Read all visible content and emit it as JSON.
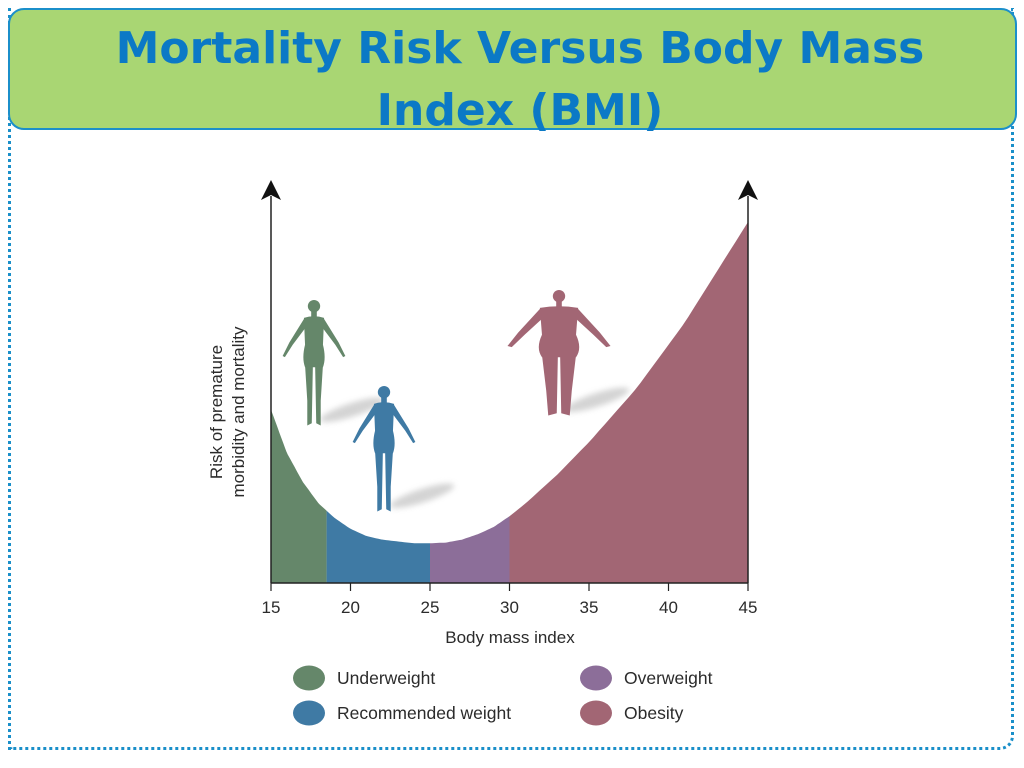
{
  "slide": {
    "title": "Mortality Risk Versus Body Mass Index (BMI)"
  },
  "chart_data": {
    "type": "area",
    "xlabel": "Body mass index",
    "ylabel_line1": "Risk of premature",
    "ylabel_line2": "morbidity and mortality",
    "xlim": [
      15,
      45
    ],
    "xticks": [
      15,
      20,
      25,
      30,
      35,
      40,
      45
    ],
    "x": [
      15,
      16,
      17,
      18,
      18.5,
      19,
      20,
      21,
      22,
      23,
      24,
      25,
      26,
      27,
      28,
      29,
      30,
      31,
      32,
      33,
      34,
      35,
      36,
      37,
      38,
      39,
      40,
      41,
      42,
      43,
      44,
      45
    ],
    "y": [
      0.48,
      0.36,
      0.28,
      0.22,
      0.2,
      0.18,
      0.15,
      0.13,
      0.12,
      0.115,
      0.11,
      0.11,
      0.112,
      0.12,
      0.135,
      0.155,
      0.185,
      0.22,
      0.26,
      0.3,
      0.345,
      0.39,
      0.44,
      0.49,
      0.54,
      0.6,
      0.66,
      0.72,
      0.79,
      0.86,
      0.93,
      1.0
    ],
    "y_unit": "relative risk (no scale shown)",
    "regions": [
      {
        "name": "Underweight",
        "from": 15,
        "to": 18.5,
        "color": "#65876a"
      },
      {
        "name": "Recommended weight",
        "from": 18.5,
        "to": 25,
        "color": "#3f7aa4"
      },
      {
        "name": "Overweight",
        "from": 25,
        "to": 30,
        "color": "#8c6e99"
      },
      {
        "name": "Obesity",
        "from": 30,
        "to": 45,
        "color": "#a26674"
      }
    ],
    "legend": [
      {
        "label": "Underweight",
        "color": "#65876a"
      },
      {
        "label": "Recommended weight",
        "color": "#3f7aa4"
      },
      {
        "label": "Overweight",
        "color": "#8c6e99"
      },
      {
        "label": "Obesity",
        "color": "#a26674"
      }
    ],
    "figures": [
      {
        "name": "underweight-figure",
        "color": "#65876a"
      },
      {
        "name": "recommended-figure",
        "color": "#3f7aa4"
      },
      {
        "name": "obese-figure",
        "color": "#a26674"
      }
    ]
  }
}
